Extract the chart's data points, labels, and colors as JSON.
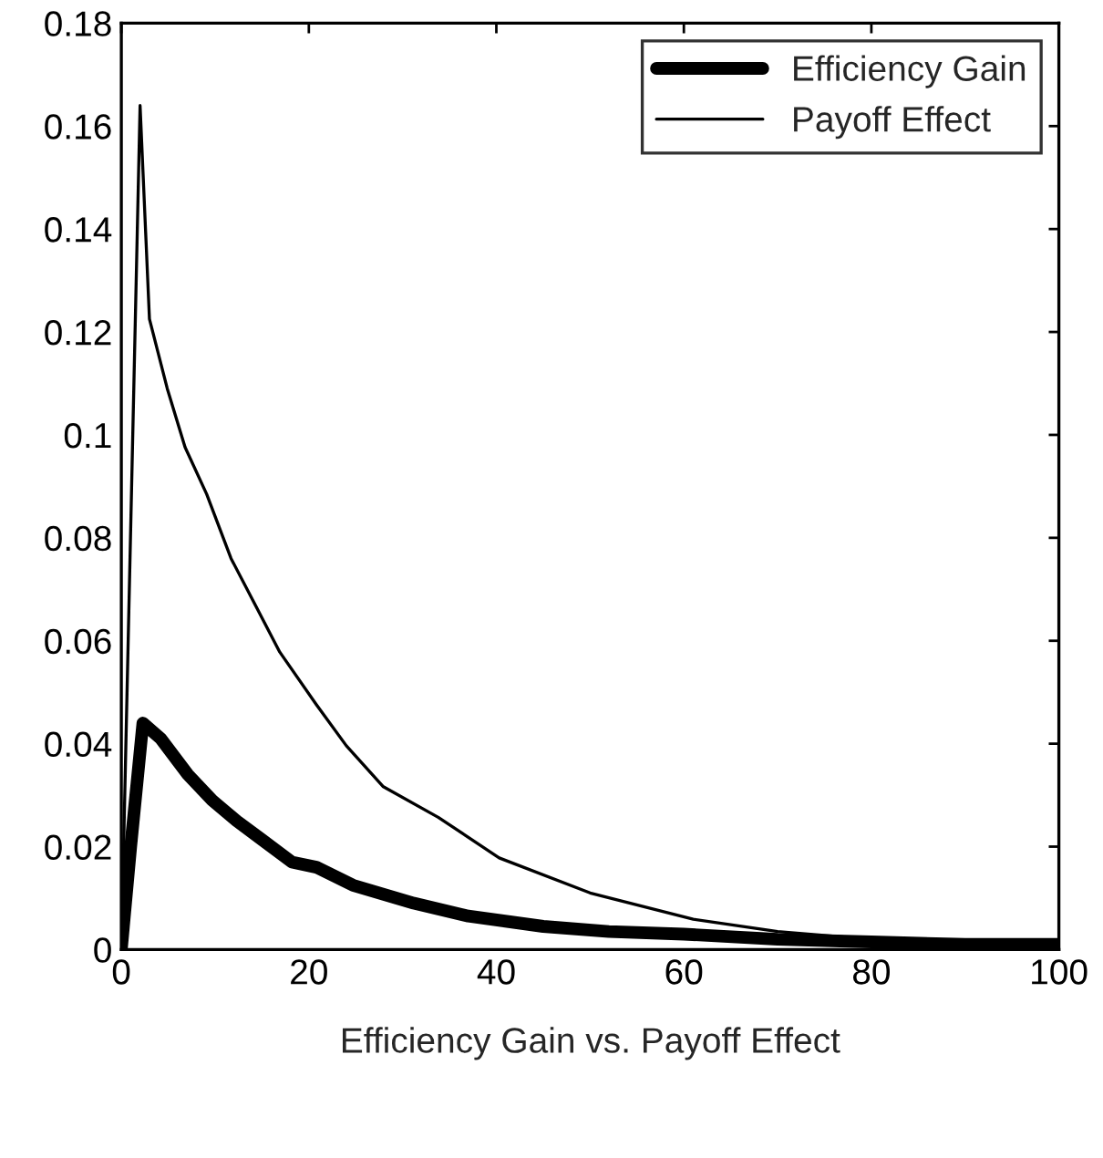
{
  "chart_data": {
    "type": "line",
    "xlabel": "Efficiency Gain vs. Payoff Effect",
    "xlim": [
      0,
      100
    ],
    "xticks": [
      0,
      20,
      40,
      60,
      80,
      100
    ],
    "ylim": [
      0,
      0.18
    ],
    "yticks": [
      0,
      0.02,
      0.04,
      0.06,
      0.08,
      0.1,
      0.12,
      0.14,
      0.16,
      0.18
    ],
    "legend": "top right",
    "grid": false,
    "series": [
      {
        "name": "Efficiency Gain",
        "color": "#000000",
        "x": [
          0,
          1,
          2.3,
          4.2,
          7.1,
          9.7,
          12.3,
          14.9,
          18.2,
          20.8,
          24.7,
          31.2,
          37,
          45,
          52,
          60,
          70,
          80,
          90,
          100
        ],
        "values": [
          0,
          0.02,
          0.044,
          0.041,
          0.034,
          0.029,
          0.025,
          0.0215,
          0.017,
          0.016,
          0.0125,
          0.009,
          0.0065,
          0.0045,
          0.0035,
          0.003,
          0.002,
          0.0015,
          0.001,
          0.001
        ]
      },
      {
        "name": "Payoff Effect",
        "color": "#000000",
        "x": [
          0,
          2,
          3,
          4.9,
          6.8,
          9.1,
          11.7,
          14.3,
          16.9,
          20.8,
          24,
          27.9,
          33.8,
          40.3,
          50,
          61,
          70,
          80,
          90,
          100
        ],
        "values": [
          0,
          0.164,
          0.1225,
          0.109,
          0.0976,
          0.0885,
          0.076,
          0.0669,
          0.0578,
          0.0476,
          0.0396,
          0.0317,
          0.0257,
          0.0178,
          0.011,
          0.0059,
          0.0035,
          0.002,
          0.0015,
          0.001
        ]
      }
    ]
  }
}
